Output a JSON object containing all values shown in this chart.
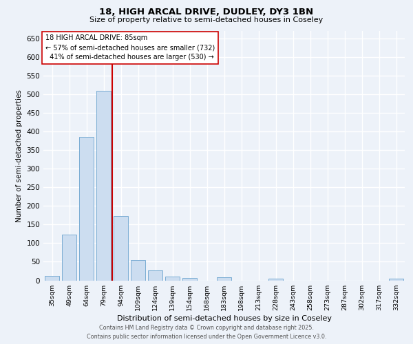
{
  "title_line1": "18, HIGH ARCAL DRIVE, DUDLEY, DY3 1BN",
  "title_line2": "Size of property relative to semi-detached houses in Coseley",
  "xlabel": "Distribution of semi-detached houses by size in Coseley",
  "ylabel": "Number of semi-detached properties",
  "bar_labels": [
    "35sqm",
    "49sqm",
    "64sqm",
    "79sqm",
    "94sqm",
    "109sqm",
    "124sqm",
    "139sqm",
    "154sqm",
    "168sqm",
    "183sqm",
    "198sqm",
    "213sqm",
    "228sqm",
    "243sqm",
    "258sqm",
    "273sqm",
    "287sqm",
    "302sqm",
    "317sqm",
    "332sqm"
  ],
  "bar_values": [
    12,
    123,
    385,
    510,
    172,
    54,
    27,
    11,
    7,
    0,
    8,
    0,
    0,
    5,
    0,
    0,
    0,
    0,
    0,
    0,
    5
  ],
  "bar_color": "#ccddf0",
  "bar_edge_color": "#7aadd4",
  "pct_smaller": 57,
  "count_smaller": 732,
  "pct_larger": 41,
  "count_larger": 530,
  "vline_color": "#cc0000",
  "vline_x": 3.5,
  "ylim": [
    0,
    670
  ],
  "yticks": [
    0,
    50,
    100,
    150,
    200,
    250,
    300,
    350,
    400,
    450,
    500,
    550,
    600,
    650
  ],
  "background_color": "#edf2f9",
  "grid_color": "#ffffff",
  "annotation_box_color": "#ffffff",
  "annotation_box_edge": "#cc0000",
  "footer_line1": "Contains HM Land Registry data © Crown copyright and database right 2025.",
  "footer_line2": "Contains public sector information licensed under the Open Government Licence v3.0."
}
